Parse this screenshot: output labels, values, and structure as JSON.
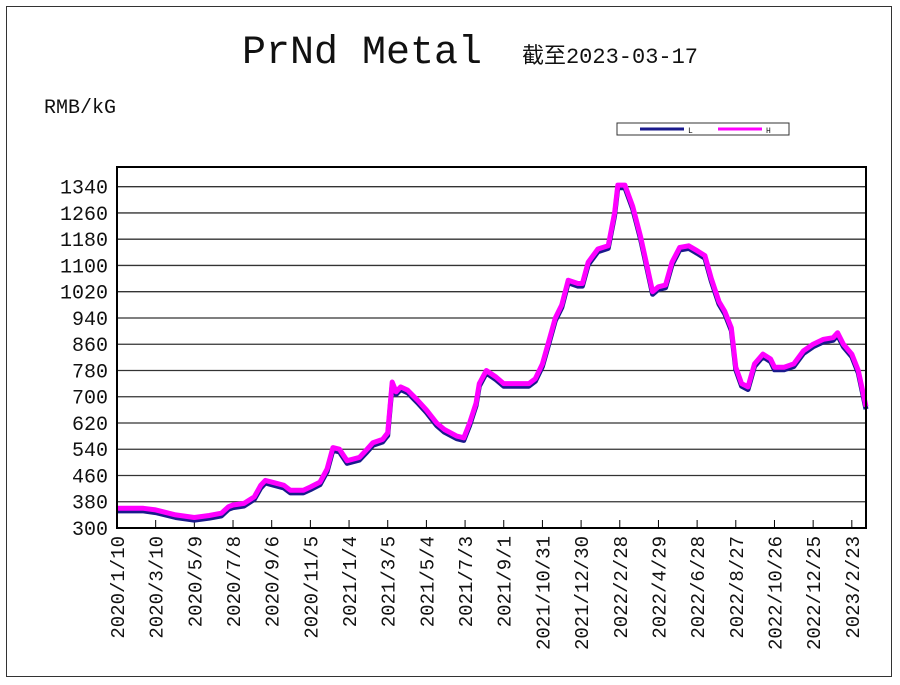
{
  "chart_data": {
    "type": "line",
    "title": "PrNd Metal",
    "subtitle": "截至2023-03-17",
    "ylabel": "RMB/kG",
    "xlabel": "",
    "ylim": [
      300,
      1400
    ],
    "yticks": [
      300,
      380,
      460,
      540,
      620,
      700,
      780,
      860,
      940,
      1020,
      1100,
      1180,
      1260,
      1340
    ],
    "xlim": [
      "2020-01-10",
      "2023-03-17"
    ],
    "xtick_labels": [
      "2020/1/10",
      "2020/3/10",
      "2020/5/9",
      "2020/7/8",
      "2020/9/6",
      "2020/11/5",
      "2021/1/4",
      "2021/3/5",
      "2021/5/4",
      "2021/7/3",
      "2021/9/1",
      "2021/10/31",
      "2021/12/30",
      "2022/2/28",
      "2022/4/29",
      "2022/6/28",
      "2022/8/27",
      "2022/10/26",
      "2022/12/25",
      "2023/2/23"
    ],
    "grid": "horizontal",
    "legend_placement": "top-right",
    "colors": {
      "L": "#1a1a8c",
      "H": "#ff00ff"
    },
    "series": [
      {
        "name": "L",
        "offset_note_free": true,
        "points": []
      },
      {
        "name": "H",
        "points": [
          [
            "2020-01-10",
            360
          ],
          [
            "2020-02-20",
            360
          ],
          [
            "2020-03-10",
            355
          ],
          [
            "2020-04-10",
            340
          ],
          [
            "2020-05-09",
            332
          ],
          [
            "2020-06-01",
            338
          ],
          [
            "2020-06-20",
            345
          ],
          [
            "2020-07-01",
            365
          ],
          [
            "2020-07-08",
            370
          ],
          [
            "2020-07-25",
            375
          ],
          [
            "2020-08-10",
            395
          ],
          [
            "2020-08-20",
            430
          ],
          [
            "2020-08-27",
            445
          ],
          [
            "2020-09-06",
            440
          ],
          [
            "2020-09-25",
            430
          ],
          [
            "2020-10-05",
            415
          ],
          [
            "2020-10-25",
            415
          ],
          [
            "2020-11-05",
            425
          ],
          [
            "2020-11-20",
            440
          ],
          [
            "2020-12-01",
            480
          ],
          [
            "2020-12-10",
            545
          ],
          [
            "2020-12-20",
            540
          ],
          [
            "2021-01-01",
            505
          ],
          [
            "2021-01-20",
            515
          ],
          [
            "2021-02-01",
            540
          ],
          [
            "2021-02-10",
            560
          ],
          [
            "2021-02-25",
            570
          ],
          [
            "2021-03-01",
            580
          ],
          [
            "2021-03-05",
            590
          ],
          [
            "2021-03-12",
            745
          ],
          [
            "2021-03-18",
            715
          ],
          [
            "2021-03-25",
            730
          ],
          [
            "2021-04-05",
            720
          ],
          [
            "2021-04-20",
            690
          ],
          [
            "2021-05-04",
            660
          ],
          [
            "2021-05-20",
            620
          ],
          [
            "2021-06-01",
            600
          ],
          [
            "2021-06-20",
            580
          ],
          [
            "2021-07-01",
            575
          ],
          [
            "2021-07-10",
            620
          ],
          [
            "2021-07-20",
            680
          ],
          [
            "2021-07-25",
            740
          ],
          [
            "2021-08-05",
            780
          ],
          [
            "2021-08-20",
            760
          ],
          [
            "2021-09-01",
            740
          ],
          [
            "2021-09-20",
            740
          ],
          [
            "2021-10-10",
            740
          ],
          [
            "2021-10-20",
            755
          ],
          [
            "2021-10-31",
            800
          ],
          [
            "2021-11-10",
            870
          ],
          [
            "2021-11-20",
            940
          ],
          [
            "2021-11-30",
            980
          ],
          [
            "2021-12-10",
            1055
          ],
          [
            "2021-12-25",
            1045
          ],
          [
            "2022-01-01",
            1045
          ],
          [
            "2022-01-10",
            1110
          ],
          [
            "2022-01-25",
            1150
          ],
          [
            "2022-02-10",
            1160
          ],
          [
            "2022-02-20",
            1260
          ],
          [
            "2022-02-25",
            1345
          ],
          [
            "2022-03-08",
            1345
          ],
          [
            "2022-03-20",
            1280
          ],
          [
            "2022-04-01",
            1190
          ],
          [
            "2022-04-10",
            1110
          ],
          [
            "2022-04-20",
            1020
          ],
          [
            "2022-04-29",
            1035
          ],
          [
            "2022-05-10",
            1040
          ],
          [
            "2022-05-20",
            1110
          ],
          [
            "2022-06-01",
            1155
          ],
          [
            "2022-06-15",
            1160
          ],
          [
            "2022-06-28",
            1145
          ],
          [
            "2022-07-10",
            1130
          ],
          [
            "2022-07-20",
            1060
          ],
          [
            "2022-08-01",
            990
          ],
          [
            "2022-08-10",
            960
          ],
          [
            "2022-08-20",
            910
          ],
          [
            "2022-08-27",
            790
          ],
          [
            "2022-09-05",
            740
          ],
          [
            "2022-09-15",
            730
          ],
          [
            "2022-09-25",
            800
          ],
          [
            "2022-10-08",
            830
          ],
          [
            "2022-10-20",
            815
          ],
          [
            "2022-10-26",
            790
          ],
          [
            "2022-11-10",
            790
          ],
          [
            "2022-11-25",
            800
          ],
          [
            "2022-12-10",
            840
          ],
          [
            "2022-12-25",
            860
          ],
          [
            "2023-01-10",
            875
          ],
          [
            "2023-01-25",
            880
          ],
          [
            "2023-02-01",
            895
          ],
          [
            "2023-02-10",
            860
          ],
          [
            "2023-02-23",
            830
          ],
          [
            "2023-03-05",
            780
          ],
          [
            "2023-03-17",
            670
          ]
        ]
      }
    ]
  }
}
